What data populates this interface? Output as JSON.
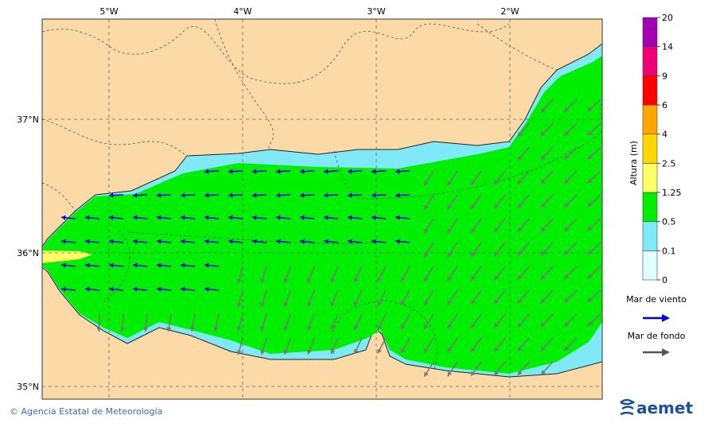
{
  "map": {
    "lon_labels": [
      "5°W",
      "4°W",
      "3°W",
      "2°W"
    ],
    "lat_labels": [
      "37°N",
      "36°N",
      "35°N"
    ]
  },
  "legend": {
    "title": "Altura (m)",
    "levels": [
      0,
      0.1,
      0.5,
      1.25,
      2.5,
      4,
      6,
      9,
      14,
      20
    ],
    "colors": [
      "#e0ffff",
      "#7fe9f7",
      "#00ee00",
      "#ffff66",
      "#ffd700",
      "#ffa500",
      "#ff0000",
      "#ee0077",
      "#a000b0"
    ],
    "wind_sea": "Mar de viento",
    "swell": "Mar de fondo"
  },
  "footer": {
    "credit": "© Agencia Estatal de Meteorología",
    "logo": "aemet"
  }
}
